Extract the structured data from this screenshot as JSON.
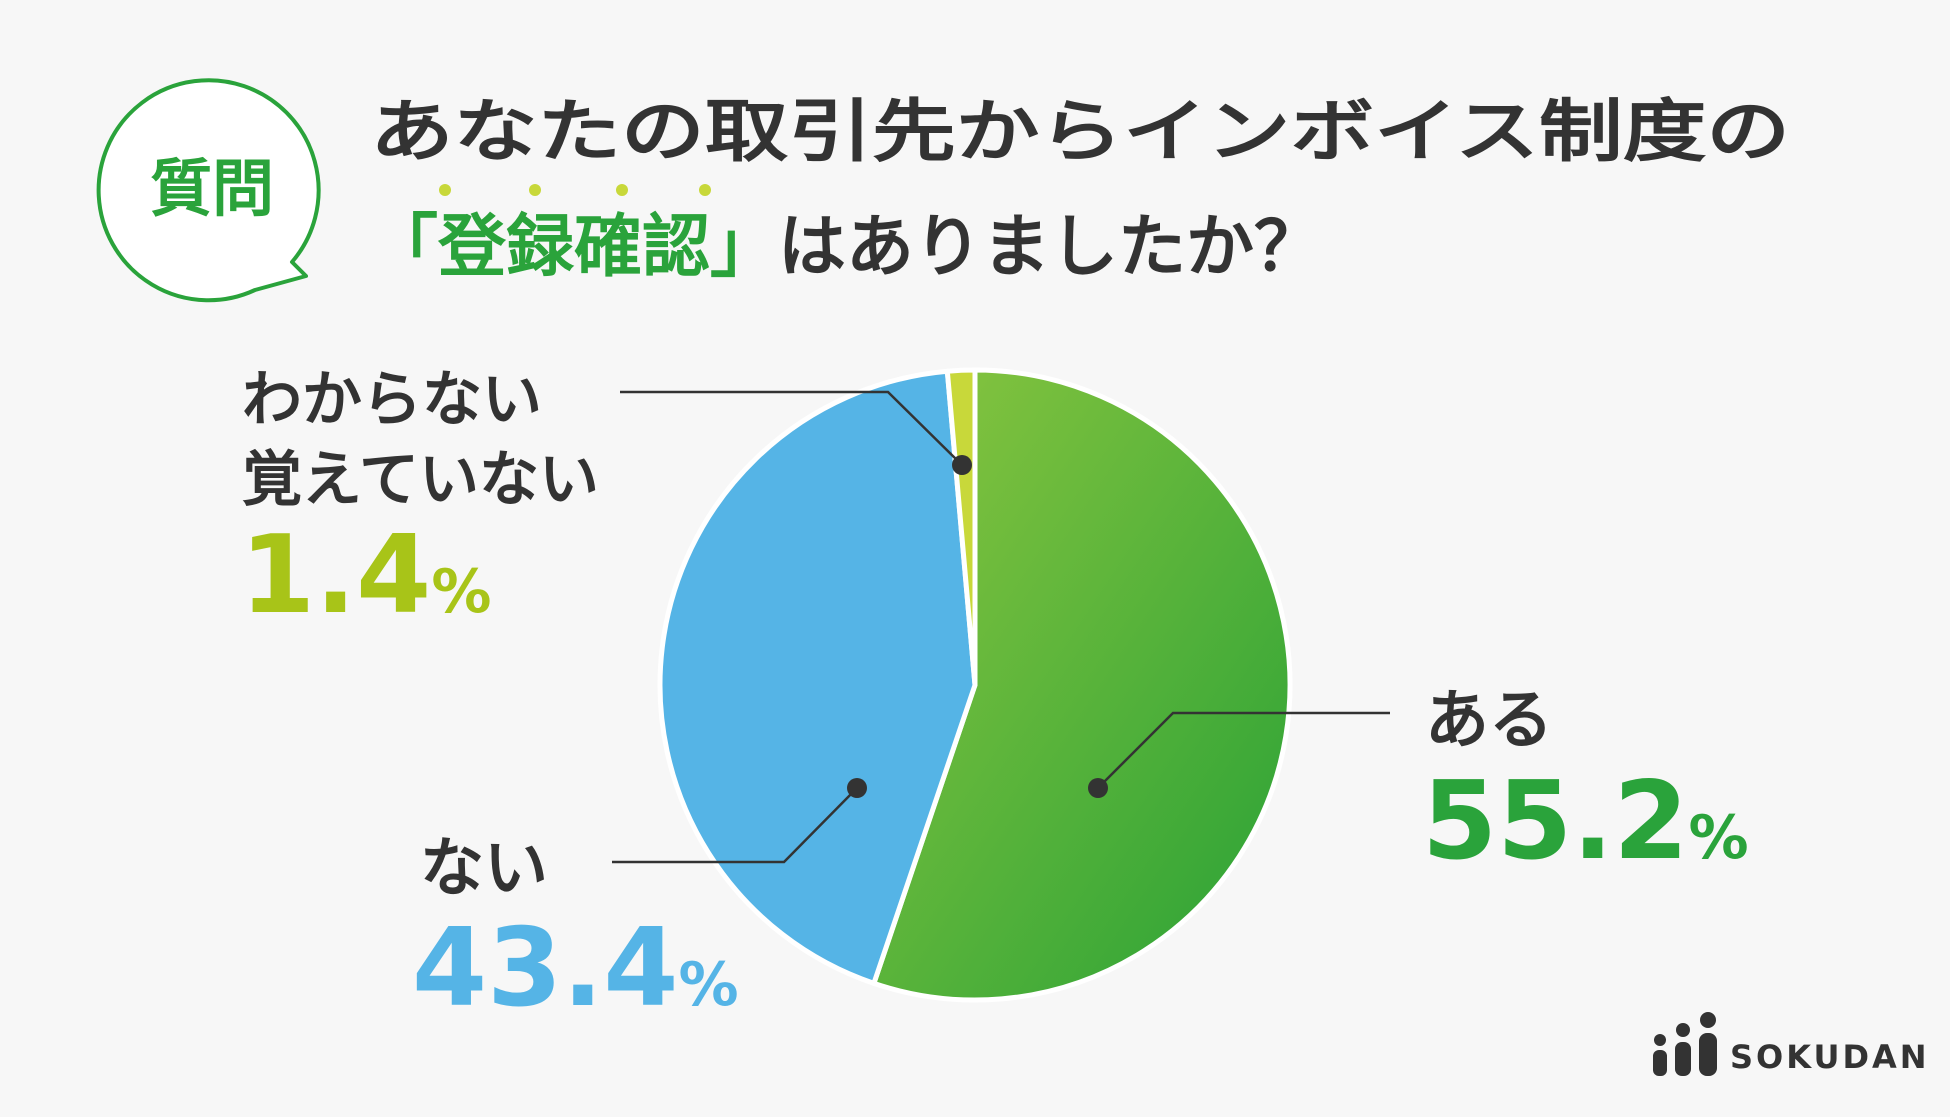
{
  "badge": {
    "label": "質問"
  },
  "question": {
    "line1": "あなたの取引先からインボイス制度の",
    "line2_open": "「",
    "line2_emphasis": "登録確認",
    "line2_close": "」",
    "line2_rest": "はありましたか？"
  },
  "colors": {
    "green": "#2aa33b",
    "green_light": "#7bc142",
    "lime": "#c8d83a",
    "lime_text": "#a8c418",
    "blue": "#55b4e6",
    "text": "#333333",
    "background": "#f7f7f7"
  },
  "chart_data": {
    "type": "pie",
    "start_angle_deg": 0,
    "direction": "clockwise",
    "slices": [
      {
        "label": "ある",
        "value": 55.2,
        "value_text": "55.2",
        "unit": "%",
        "color": "#2aa33b"
      },
      {
        "label": "ない",
        "value": 43.4,
        "value_text": "43.4",
        "unit": "%",
        "color": "#55b4e6"
      },
      {
        "label_lines": [
          "わからない",
          "覚えていない"
        ],
        "value": 1.4,
        "value_text": "1.4",
        "unit": "%",
        "color": "#c8d83a"
      }
    ]
  },
  "brand": {
    "name": "SOKUDAN",
    "logo_icon": "people-icon"
  }
}
